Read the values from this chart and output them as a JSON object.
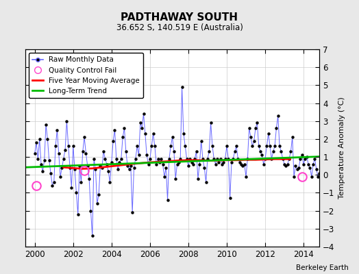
{
  "title": "PADTHAWAY SOUTH",
  "subtitle": "36.652 S, 140.519 E (Australia)",
  "ylabel": "Temperature Anomaly (°C)",
  "credit": "Berkeley Earth",
  "ylim": [
    -4,
    7
  ],
  "yticks": [
    -4,
    -3,
    -2,
    -1,
    0,
    1,
    2,
    3,
    4,
    5,
    6,
    7
  ],
  "xlim": [
    1999.5,
    2014.83
  ],
  "xticks": [
    2000,
    2002,
    2004,
    2006,
    2008,
    2010,
    2012,
    2014
  ],
  "bg_color": "#e8e8e8",
  "plot_bg_color": "#ffffff",
  "raw_color": "#6666ff",
  "dot_color": "#000000",
  "moving_avg_color": "#ff0000",
  "trend_color": "#00bb00",
  "qc_color": "#ff44cc",
  "raw_monthly": [
    1.2,
    1.8,
    0.9,
    2.0,
    0.6,
    0.2,
    0.8,
    2.8,
    2.0,
    0.8,
    0.1,
    -0.6,
    -0.4,
    1.6,
    2.5,
    1.2,
    -0.1,
    0.4,
    0.9,
    1.4,
    3.0,
    1.6,
    0.4,
    -0.7,
    1.6,
    0.3,
    -1.0,
    -2.2,
    0.5,
    -0.4,
    1.3,
    2.1,
    1.2,
    0.5,
    -0.2,
    -2.0,
    -3.4,
    0.9,
    0.3,
    -1.6,
    -1.1,
    0.5,
    0.4,
    1.3,
    0.9,
    0.6,
    0.2,
    -0.4,
    0.7,
    1.9,
    2.5,
    0.9,
    0.3,
    0.7,
    0.9,
    2.1,
    2.6,
    1.3,
    0.5,
    0.3,
    0.5,
    -2.1,
    0.4,
    0.9,
    1.6,
    1.1,
    2.9,
    2.6,
    3.4,
    2.3,
    1.1,
    0.6,
    0.9,
    1.6,
    2.3,
    1.6,
    0.6,
    0.9,
    0.7,
    0.9,
    0.6,
    -0.1,
    0.4,
    -1.4,
    0.9,
    1.6,
    2.1,
    1.3,
    -0.2,
    0.6,
    0.7,
    0.9,
    4.9,
    2.3,
    1.6,
    0.9,
    0.5,
    0.9,
    0.7,
    0.6,
    0.9,
    1.3,
    -0.2,
    0.6,
    1.9,
    0.9,
    0.4,
    -0.4,
    0.9,
    1.3,
    2.9,
    1.6,
    0.9,
    0.6,
    0.9,
    0.7,
    0.9,
    0.6,
    0.7,
    0.9,
    1.6,
    0.9,
    -1.3,
    0.7,
    0.9,
    1.3,
    1.6,
    0.9,
    0.7,
    0.6,
    0.5,
    0.6,
    -0.1,
    0.9,
    2.6,
    2.1,
    1.6,
    1.9,
    2.6,
    2.9,
    1.6,
    1.3,
    1.1,
    0.6,
    0.9,
    1.6,
    2.3,
    1.6,
    0.9,
    1.3,
    1.6,
    2.6,
    3.3,
    1.6,
    1.3,
    0.9,
    0.6,
    0.5,
    0.6,
    0.9,
    1.3,
    2.1,
    -0.1,
    0.5,
    0.3,
    0.4,
    0.9,
    1.1,
    0.6,
    0.9,
    1.0,
    0.6,
    0.4,
    -0.1,
    0.6,
    0.9,
    0.3,
    -0.1,
    0.1,
    0.4
  ],
  "qc_fail_times": [
    2000.08,
    2002.58,
    2013.92
  ],
  "qc_fail_values": [
    -0.6,
    0.25,
    -0.1
  ],
  "start_year": 2000.0,
  "months_per_year": 12,
  "moving_avg_x": [
    2001.5,
    2002.0,
    2002.5,
    2003.0,
    2003.5,
    2004.0,
    2004.5,
    2005.0,
    2005.5,
    2006.0,
    2006.5,
    2007.0,
    2007.5,
    2008.0,
    2008.5,
    2009.0,
    2009.5,
    2010.0,
    2010.5,
    2011.0,
    2011.5,
    2012.0,
    2012.5,
    2013.0,
    2013.3
  ],
  "moving_avg_y": [
    0.42,
    0.38,
    0.34,
    0.36,
    0.42,
    0.48,
    0.54,
    0.6,
    0.65,
    0.7,
    0.73,
    0.76,
    0.8,
    0.82,
    0.82,
    0.8,
    0.8,
    0.82,
    0.82,
    0.84,
    0.84,
    0.86,
    0.88,
    0.88,
    0.88
  ],
  "trend_x": [
    1999.5,
    2014.83
  ],
  "trend_y": [
    0.42,
    1.02
  ]
}
